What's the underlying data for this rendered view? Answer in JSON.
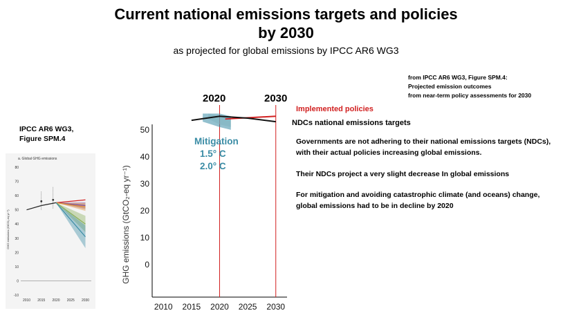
{
  "header": {
    "title_line1": "Current national emissions targets and policies",
    "title_line2": "by 2030",
    "subtitle": "as projected for global emissions by IPCC AR6 WG3"
  },
  "source_note": {
    "line1": "from IPCC AR6 WG3, Figure SPM.4:",
    "line2": "Projected emission outcomes",
    "line3": "from near-term policy  assessments for 2030"
  },
  "small_figure": {
    "label_line1": "IPCC AR6 WG3,",
    "label_line2": "Figure SPM.4",
    "panel_title": "a. Global GHG emissions",
    "ylabel": "GHG emissions (GtCO₂-eq yr⁻¹)"
  },
  "annotations": {
    "year_2020": "2020",
    "year_2030": "2030",
    "implemented_policies": "Implemented policies",
    "ndcs": "NDCs national emissions targets",
    "mitigation_title": "Mitigation",
    "mitigation_15": "1.5° C",
    "mitigation_20": "2.0° C"
  },
  "paragraphs": {
    "p1": "Governments are not adhering to their national emissions targets (NDCs), with their actual policies increasing global emissions.",
    "p2": "Their NDCs project a very slight decrease  In global emissions",
    "p3": "For mitigation and avoiding catastrophic climate (and oceans) change, global emissions had to be in decline by 2020"
  },
  "colors": {
    "implemented": "#d11f1f",
    "ndc": "#111111",
    "mitigation": "#3a8ca5",
    "history": "#222222"
  },
  "chart_data": [
    {
      "type": "line",
      "id": "main",
      "ylabel": "GHG emissions (GtCO₂-eq yr⁻¹)",
      "xlim": [
        2008,
        2032
      ],
      "ylim": [
        -12,
        52
      ],
      "x_ticks": [
        2010,
        2015,
        2020,
        2025,
        2030
      ],
      "y_ticks": [
        0,
        10,
        20,
        30,
        40,
        50
      ],
      "series": [
        {
          "name": "Implemented policies",
          "color": "#d11f1f",
          "x": [
            2021,
            2030
          ],
          "y": [
            54,
            55
          ]
        },
        {
          "name": "NDCs national emissions targets",
          "color": "#111111",
          "x": [
            2015,
            2020,
            2025,
            2030
          ],
          "y": [
            53.5,
            55,
            54.3,
            53
          ]
        }
      ],
      "bands": [
        {
          "color": "#3a8ca5",
          "x": [
            2017,
            2020,
            2022
          ],
          "upper": [
            56,
            56,
            55
          ],
          "lower": [
            53,
            51,
            50
          ]
        },
        {
          "color": "#7fb2c0",
          "x": [
            2018,
            2020,
            2022
          ],
          "upper": [
            56,
            55,
            54
          ],
          "lower": [
            54,
            52,
            51
          ]
        }
      ]
    },
    {
      "type": "line",
      "id": "spm4",
      "title": "a. Global GHG emissions",
      "ylabel": "GHG emissions (GtCO₂-eq yr⁻¹)",
      "xlim": [
        2008,
        2032
      ],
      "ylim": [
        -10,
        80
      ],
      "x_ticks": [
        2010,
        2015,
        2020,
        2025,
        2030
      ],
      "y_ticks": [
        -10,
        0,
        10,
        20,
        30,
        40,
        50,
        60,
        70,
        80
      ],
      "series": [
        {
          "name": "historical",
          "color": "#222222",
          "x": [
            2010,
            2015,
            2020
          ],
          "y": [
            50,
            53,
            55
          ]
        },
        {
          "name": "implemented",
          "color": "#d11f1f",
          "x": [
            2020,
            2030
          ],
          "y": [
            55,
            57
          ]
        },
        {
          "name": "ndc",
          "color": "#7a4fa0",
          "x": [
            2020,
            2030
          ],
          "y": [
            55,
            53
          ]
        },
        {
          "name": "orange",
          "color": "#e08a2a",
          "x": [
            2020,
            2030
          ],
          "y": [
            55,
            52
          ]
        },
        {
          "name": "green",
          "color": "#8ab05a",
          "x": [
            2020,
            2030
          ],
          "y": [
            55,
            40
          ]
        },
        {
          "name": "blue",
          "color": "#3a8ca5",
          "x": [
            2020,
            2030
          ],
          "y": [
            55,
            31
          ]
        }
      ],
      "points": [
        {
          "x": 2015,
          "y": 56,
          "low": 50,
          "high": 63
        },
        {
          "x": 2019,
          "y": 57,
          "low": 51,
          "high": 66
        }
      ]
    }
  ]
}
